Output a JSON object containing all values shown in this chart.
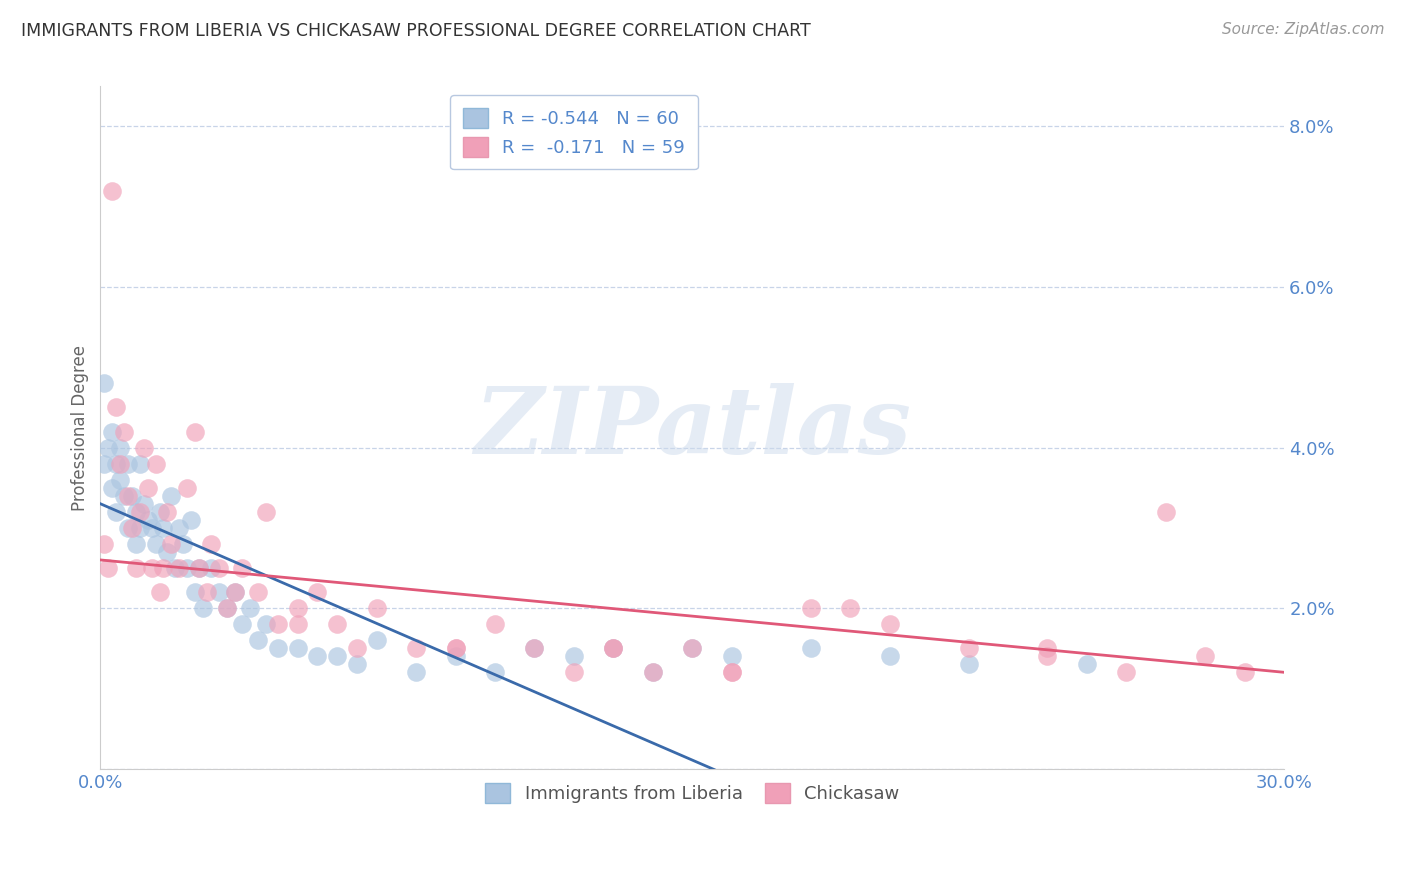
{
  "title": "IMMIGRANTS FROM LIBERIA VS CHICKASAW PROFESSIONAL DEGREE CORRELATION CHART",
  "source": "Source: ZipAtlas.com",
  "ylabel": "Professional Degree",
  "xmin": 0.0,
  "xmax": 0.3,
  "ymin": 0.0,
  "ymax": 0.085,
  "yticks": [
    0.0,
    0.02,
    0.04,
    0.06,
    0.08
  ],
  "xticks": [
    0.0,
    0.05,
    0.1,
    0.15,
    0.2,
    0.25,
    0.3
  ],
  "blue_color": "#aac4e0",
  "pink_color": "#f0a0b8",
  "blue_line_color": "#3a6aaa",
  "pink_line_color": "#e05878",
  "blue_R": -0.544,
  "blue_N": 60,
  "pink_R": -0.171,
  "pink_N": 59,
  "legend_label_blue": "Immigrants from Liberia",
  "legend_label_pink": "Chickasaw",
  "watermark": "ZIPatlas",
  "background_color": "#ffffff",
  "grid_color": "#c8d4e8",
  "title_color": "#333333",
  "axis_label_color": "#5588cc",
  "blue_line_start_y": 0.033,
  "blue_line_end_x": 0.155,
  "blue_line_end_y": 0.0,
  "pink_line_start_y": 0.026,
  "pink_line_end_y": 0.012,
  "blue_scatter_x": [
    0.001,
    0.001,
    0.002,
    0.003,
    0.003,
    0.004,
    0.004,
    0.005,
    0.005,
    0.006,
    0.007,
    0.007,
    0.008,
    0.009,
    0.009,
    0.01,
    0.01,
    0.011,
    0.012,
    0.013,
    0.014,
    0.015,
    0.016,
    0.017,
    0.018,
    0.019,
    0.02,
    0.021,
    0.022,
    0.023,
    0.024,
    0.025,
    0.026,
    0.028,
    0.03,
    0.032,
    0.034,
    0.036,
    0.038,
    0.04,
    0.042,
    0.045,
    0.05,
    0.055,
    0.06,
    0.065,
    0.07,
    0.08,
    0.09,
    0.1,
    0.11,
    0.12,
    0.13,
    0.14,
    0.15,
    0.16,
    0.18,
    0.2,
    0.22,
    0.25
  ],
  "blue_scatter_y": [
    0.048,
    0.038,
    0.04,
    0.042,
    0.035,
    0.038,
    0.032,
    0.04,
    0.036,
    0.034,
    0.03,
    0.038,
    0.034,
    0.032,
    0.028,
    0.038,
    0.03,
    0.033,
    0.031,
    0.03,
    0.028,
    0.032,
    0.03,
    0.027,
    0.034,
    0.025,
    0.03,
    0.028,
    0.025,
    0.031,
    0.022,
    0.025,
    0.02,
    0.025,
    0.022,
    0.02,
    0.022,
    0.018,
    0.02,
    0.016,
    0.018,
    0.015,
    0.015,
    0.014,
    0.014,
    0.013,
    0.016,
    0.012,
    0.014,
    0.012,
    0.015,
    0.014,
    0.015,
    0.012,
    0.015,
    0.014,
    0.015,
    0.014,
    0.013,
    0.013
  ],
  "pink_scatter_x": [
    0.001,
    0.002,
    0.003,
    0.004,
    0.005,
    0.006,
    0.007,
    0.008,
    0.009,
    0.01,
    0.011,
    0.012,
    0.013,
    0.014,
    0.015,
    0.016,
    0.017,
    0.018,
    0.02,
    0.022,
    0.024,
    0.025,
    0.027,
    0.028,
    0.03,
    0.032,
    0.034,
    0.036,
    0.04,
    0.042,
    0.045,
    0.05,
    0.055,
    0.06,
    0.065,
    0.07,
    0.08,
    0.09,
    0.1,
    0.11,
    0.12,
    0.13,
    0.14,
    0.15,
    0.16,
    0.18,
    0.2,
    0.22,
    0.24,
    0.26,
    0.28,
    0.29,
    0.27,
    0.24,
    0.19,
    0.16,
    0.13,
    0.09,
    0.05
  ],
  "pink_scatter_y": [
    0.028,
    0.025,
    0.072,
    0.045,
    0.038,
    0.042,
    0.034,
    0.03,
    0.025,
    0.032,
    0.04,
    0.035,
    0.025,
    0.038,
    0.022,
    0.025,
    0.032,
    0.028,
    0.025,
    0.035,
    0.042,
    0.025,
    0.022,
    0.028,
    0.025,
    0.02,
    0.022,
    0.025,
    0.022,
    0.032,
    0.018,
    0.02,
    0.022,
    0.018,
    0.015,
    0.02,
    0.015,
    0.015,
    0.018,
    0.015,
    0.012,
    0.015,
    0.012,
    0.015,
    0.012,
    0.02,
    0.018,
    0.015,
    0.014,
    0.012,
    0.014,
    0.012,
    0.032,
    0.015,
    0.02,
    0.012,
    0.015,
    0.015,
    0.018
  ]
}
